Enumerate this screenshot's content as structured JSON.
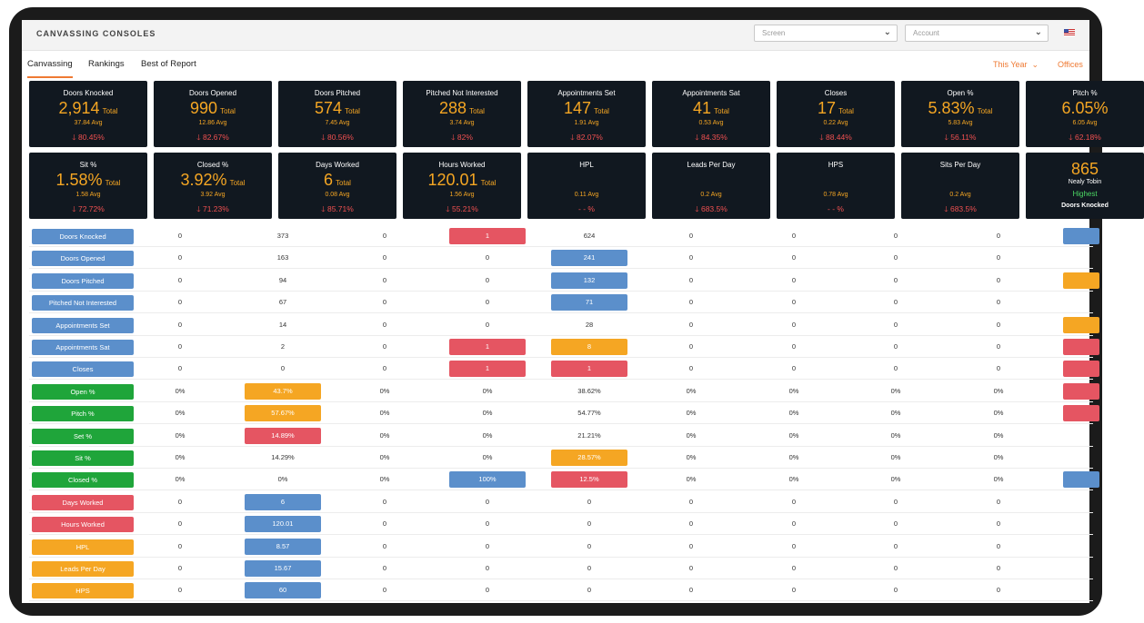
{
  "app": {
    "title": "CANVASSING CONSOLES"
  },
  "header": {
    "screen_select": {
      "placeholder": "Screen"
    },
    "account_select": {
      "placeholder": "Account"
    }
  },
  "tabs": [
    {
      "label": "Canvassing",
      "active": true
    },
    {
      "label": "Rankings",
      "active": false
    },
    {
      "label": "Best of Report",
      "active": false
    }
  ],
  "filters": {
    "period": "This Year",
    "offices": "Offices"
  },
  "cards_row1": [
    {
      "label": "Doors Knocked",
      "value": "2,914",
      "total": "Total",
      "avg": "37.84 Avg",
      "change": "🡓 80.45%"
    },
    {
      "label": "Doors Opened",
      "value": "990",
      "total": "Total",
      "avg": "12.86 Avg",
      "change": "🡓 82.67%"
    },
    {
      "label": "Doors Pitched",
      "value": "574",
      "total": "Total",
      "avg": "7.45 Avg",
      "change": "🡓 80.56%"
    },
    {
      "label": "Pitched Not Interested",
      "value": "288",
      "total": "Total",
      "avg": "3.74 Avg",
      "change": "🡓 82%"
    },
    {
      "label": "Appointments Set",
      "value": "147",
      "total": "Total",
      "avg": "1.91 Avg",
      "change": "🡓 82.07%"
    },
    {
      "label": "Appointments Sat",
      "value": "41",
      "total": "Total",
      "avg": "0.53 Avg",
      "change": "🡓 84.35%"
    },
    {
      "label": "Closes",
      "value": "17",
      "total": "Total",
      "avg": "0.22 Avg",
      "change": "🡓 88.44%"
    },
    {
      "label": "Open %",
      "value": "5.83%",
      "total": "Total",
      "avg": "5.83 Avg",
      "change": "🡓 56.11%"
    },
    {
      "label": "Pitch %",
      "value": "6.05%",
      "total": "",
      "avg": "6.05 Avg",
      "change": "🡓 62.18%"
    }
  ],
  "cards_row2": [
    {
      "label": "Sit %",
      "value": "1.58%",
      "total": "Total",
      "avg": "1.58 Avg",
      "change": "🡓 72.72%"
    },
    {
      "label": "Closed %",
      "value": "3.92%",
      "total": "Total",
      "avg": "3.92 Avg",
      "change": "🡓 71.23%"
    },
    {
      "label": "Days Worked",
      "value": "6",
      "total": "Total",
      "avg": "0.08 Avg",
      "change": "🡓 85.71%"
    },
    {
      "label": "Hours Worked",
      "value": "120.01",
      "total": "Total",
      "avg": "1.56 Avg",
      "change": "🡓 55.21%"
    },
    {
      "label": "HPL",
      "value": "",
      "total": "",
      "avg": "0.11 Avg",
      "change": "- - %"
    },
    {
      "label": "Leads Per Day",
      "value": "",
      "total": "",
      "avg": "0.2 Avg",
      "change": "🡓 683.5%"
    },
    {
      "label": "HPS",
      "value": "",
      "total": "",
      "avg": "0.78 Avg",
      "change": "- - %"
    },
    {
      "label": "Sits Per Day",
      "value": "",
      "total": "",
      "avg": "0.2 Avg",
      "change": "🡓 683.5%"
    }
  ],
  "leader_card": {
    "value": "865",
    "name": "Nealy Tobin",
    "status": "Highest",
    "metric": "Doors Knocked"
  },
  "colors": {
    "blue": "#5b8fcb",
    "red": "#e55562",
    "orange": "#f5a623",
    "green": "#1fa53a",
    "accent": "#ef7a33"
  },
  "table": {
    "rows": [
      {
        "label": "Doors Knocked",
        "color": "blue",
        "cells": [
          "0",
          "373",
          "0",
          "1",
          "624",
          "0",
          "0",
          "0",
          "0"
        ],
        "hl": [
          null,
          null,
          null,
          "red",
          null,
          null,
          null,
          null,
          null
        ],
        "edge": "blue"
      },
      {
        "label": "Doors Opened",
        "color": "blue",
        "cells": [
          "0",
          "163",
          "0",
          "0",
          "241",
          "0",
          "0",
          "0",
          "0"
        ],
        "hl": [
          null,
          null,
          null,
          null,
          "blue",
          null,
          null,
          null,
          null
        ],
        "edge": null
      },
      {
        "label": "Doors Pitched",
        "color": "blue",
        "cells": [
          "0",
          "94",
          "0",
          "0",
          "132",
          "0",
          "0",
          "0",
          "0"
        ],
        "hl": [
          null,
          null,
          null,
          null,
          "blue",
          null,
          null,
          null,
          null
        ],
        "edge": "orange"
      },
      {
        "label": "Pitched Not Interested",
        "color": "blue",
        "cells": [
          "0",
          "67",
          "0",
          "0",
          "71",
          "0",
          "0",
          "0",
          "0"
        ],
        "hl": [
          null,
          null,
          null,
          null,
          "blue",
          null,
          null,
          null,
          null
        ],
        "edge": null
      },
      {
        "label": "Appointments Set",
        "color": "blue",
        "cells": [
          "0",
          "14",
          "0",
          "0",
          "28",
          "0",
          "0",
          "0",
          "0"
        ],
        "hl": [
          null,
          null,
          null,
          null,
          null,
          null,
          null,
          null,
          null
        ],
        "edge": "orange"
      },
      {
        "label": "Appointments Sat",
        "color": "blue",
        "cells": [
          "0",
          "2",
          "0",
          "1",
          "8",
          "0",
          "0",
          "0",
          "0"
        ],
        "hl": [
          null,
          null,
          null,
          "red",
          "orange",
          null,
          null,
          null,
          null
        ],
        "edge": "red"
      },
      {
        "label": "Closes",
        "color": "blue",
        "cells": [
          "0",
          "0",
          "0",
          "1",
          "1",
          "0",
          "0",
          "0",
          "0"
        ],
        "hl": [
          null,
          null,
          null,
          "red",
          "red",
          null,
          null,
          null,
          null
        ],
        "edge": "red"
      },
      {
        "label": "Open %",
        "color": "green",
        "cells": [
          "0%",
          "43.7%",
          "0%",
          "0%",
          "38.62%",
          "0%",
          "0%",
          "0%",
          "0%"
        ],
        "hl": [
          null,
          "orange",
          null,
          null,
          null,
          null,
          null,
          null,
          null
        ],
        "edge": "red"
      },
      {
        "label": "Pitch %",
        "color": "green",
        "cells": [
          "0%",
          "57.67%",
          "0%",
          "0%",
          "54.77%",
          "0%",
          "0%",
          "0%",
          "0%"
        ],
        "hl": [
          null,
          "orange",
          null,
          null,
          null,
          null,
          null,
          null,
          null
        ],
        "edge": "red"
      },
      {
        "label": "Set %",
        "color": "green",
        "cells": [
          "0%",
          "14.89%",
          "0%",
          "0%",
          "21.21%",
          "0%",
          "0%",
          "0%",
          "0%"
        ],
        "hl": [
          null,
          "red",
          null,
          null,
          null,
          null,
          null,
          null,
          null
        ],
        "edge": null
      },
      {
        "label": "Sit %",
        "color": "green",
        "cells": [
          "0%",
          "14.29%",
          "0%",
          "0%",
          "28.57%",
          "0%",
          "0%",
          "0%",
          "0%"
        ],
        "hl": [
          null,
          null,
          null,
          null,
          "orange",
          null,
          null,
          null,
          null
        ],
        "edge": null
      },
      {
        "label": "Closed %",
        "color": "green",
        "cells": [
          "0%",
          "0%",
          "0%",
          "100%",
          "12.5%",
          "0%",
          "0%",
          "0%",
          "0%"
        ],
        "hl": [
          null,
          null,
          null,
          "blue",
          "red",
          null,
          null,
          null,
          null
        ],
        "edge": "blue"
      },
      {
        "label": "Days Worked",
        "color": "red",
        "cells": [
          "0",
          "6",
          "0",
          "0",
          "0",
          "0",
          "0",
          "0",
          "0"
        ],
        "hl": [
          null,
          "blue",
          null,
          null,
          null,
          null,
          null,
          null,
          null
        ],
        "edge": null
      },
      {
        "label": "Hours Worked",
        "color": "red",
        "cells": [
          "0",
          "120.01",
          "0",
          "0",
          "0",
          "0",
          "0",
          "0",
          "0"
        ],
        "hl": [
          null,
          "blue",
          null,
          null,
          null,
          null,
          null,
          null,
          null
        ],
        "edge": null
      },
      {
        "label": "HPL",
        "color": "orange",
        "cells": [
          "0",
          "8.57",
          "0",
          "0",
          "0",
          "0",
          "0",
          "0",
          "0"
        ],
        "hl": [
          null,
          "blue",
          null,
          null,
          null,
          null,
          null,
          null,
          null
        ],
        "edge": null
      },
      {
        "label": "Leads Per Day",
        "color": "orange",
        "cells": [
          "0",
          "15.67",
          "0",
          "0",
          "0",
          "0",
          "0",
          "0",
          "0"
        ],
        "hl": [
          null,
          "blue",
          null,
          null,
          null,
          null,
          null,
          null,
          null
        ],
        "edge": null
      },
      {
        "label": "HPS",
        "color": "orange",
        "cells": [
          "0",
          "60",
          "0",
          "0",
          "0",
          "0",
          "0",
          "0",
          "0"
        ],
        "hl": [
          null,
          "blue",
          null,
          null,
          null,
          null,
          null,
          null,
          null
        ],
        "edge": null
      }
    ]
  }
}
